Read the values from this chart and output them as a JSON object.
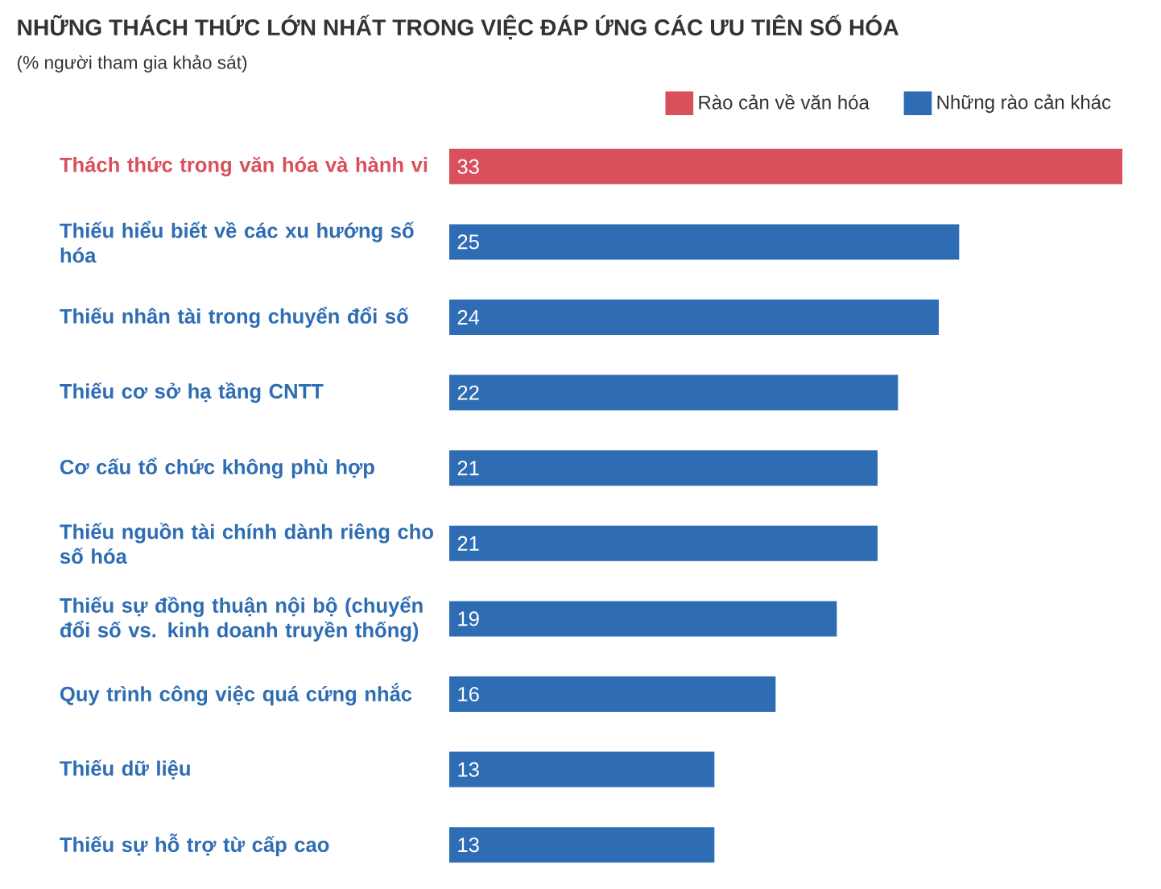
{
  "chart_data": {
    "type": "bar",
    "orientation": "horizontal",
    "title": "NHỮNG THÁCH THỨC LỚN NHẤT TRONG VIỆC ĐÁP ỨNG CÁC ƯU TIÊN SỐ HÓA",
    "subtitle": "(% người tham gia khảo sát)",
    "categories": [
      "Thách thức trong văn hóa và hành vi",
      "Thiếu hiểu biết về các xu hướng số hóa",
      "Thiếu nhân tài trong chuyển đổi số",
      "Thiếu cơ sở hạ tầng CNTT",
      "Cơ cấu tổ chức không phù hợp",
      "Thiếu nguồn tài chính dành riêng cho số hóa",
      "Thiếu sự đồng thuận nội bộ (chuyển đổi số vs. kinh doanh truyền thống)",
      "Quy trình công việc quá cứng nhắc",
      "Thiếu dữ liệu",
      "Thiếu sự hỗ trợ từ cấp cao"
    ],
    "series": [
      {
        "name": "Rào cản về văn hóa",
        "color": "#d9505c",
        "values": [
          33,
          null,
          null,
          null,
          null,
          null,
          null,
          null,
          null,
          null
        ]
      },
      {
        "name": "Những rào cản khác",
        "color": "#2e6db4",
        "values": [
          null,
          25,
          24,
          22,
          21,
          21,
          19,
          16,
          13,
          13
        ]
      }
    ],
    "xlim": [
      0,
      33
    ],
    "data_labels": true,
    "legend": "top right"
  }
}
